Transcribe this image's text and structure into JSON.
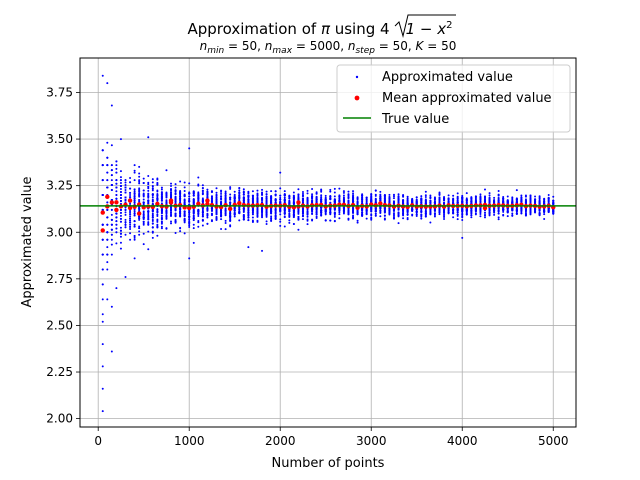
{
  "chart_data": {
    "type": "scatter",
    "title_prefix": "Approximation of ",
    "title_pi": "π",
    "title_using": " using 4",
    "title_expr": "1 − x",
    "title_sup": "2",
    "subtitle": "n_min = 50, n_max = 5000, n_step = 50, K = 50",
    "subtitle_parts": {
      "n1": "n",
      "s1": "min",
      "v1": " = 50, ",
      "n2": "n",
      "s2": "max",
      "v2": " = 5000, ",
      "n3": "n",
      "s3": "step",
      "v3": " = 50, ",
      "k": "K",
      "v4": " = 50"
    },
    "xlabel": "Number of points",
    "ylabel": "Approximated value",
    "xlim": [
      -200,
      5250
    ],
    "ylim": [
      1.955,
      3.935
    ],
    "xticks": [
      0,
      1000,
      2000,
      3000,
      4000,
      5000
    ],
    "xtick_labels": [
      "0",
      "1000",
      "2000",
      "3000",
      "4000",
      "5000"
    ],
    "yticks": [
      2.0,
      2.25,
      2.5,
      2.75,
      3.0,
      3.25,
      3.5,
      3.75
    ],
    "ytick_labels": [
      "2.00",
      "2.25",
      "2.50",
      "2.75",
      "3.00",
      "3.25",
      "3.50",
      "3.75"
    ],
    "grid": true,
    "legend_position": "top-right",
    "n_min": 50,
    "n_max": 5000,
    "n_step": 50,
    "K": 50,
    "true_value": 3.14159,
    "series": [
      {
        "name": "Approximated value",
        "color": "#0000ff",
        "marker": "point"
      },
      {
        "name": "Mean approximated value",
        "color": "#ff0000",
        "marker": "point"
      },
      {
        "name": "True value",
        "color": "#008000",
        "marker": "line"
      }
    ],
    "sample_extremes": [
      {
        "x": 50,
        "y": 3.84
      },
      {
        "x": 50,
        "y": 2.04
      },
      {
        "x": 50,
        "y": 2.16
      },
      {
        "x": 50,
        "y": 2.28
      },
      {
        "x": 50,
        "y": 2.4
      },
      {
        "x": 50,
        "y": 2.52
      },
      {
        "x": 100,
        "y": 3.8
      },
      {
        "x": 100,
        "y": 2.64
      },
      {
        "x": 150,
        "y": 3.68
      },
      {
        "x": 150,
        "y": 2.6
      },
      {
        "x": 150,
        "y": 2.36
      },
      {
        "x": 200,
        "y": 2.7
      },
      {
        "x": 250,
        "y": 3.5
      },
      {
        "x": 300,
        "y": 2.76
      },
      {
        "x": 550,
        "y": 3.51
      },
      {
        "x": 1000,
        "y": 3.45
      },
      {
        "x": 1000,
        "y": 2.86
      },
      {
        "x": 1650,
        "y": 2.92
      },
      {
        "x": 1800,
        "y": 2.9
      },
      {
        "x": 2000,
        "y": 3.32
      },
      {
        "x": 4000,
        "y": 2.97
      }
    ],
    "mean_points_sample": [
      {
        "x": 50,
        "y": 3.01
      },
      {
        "x": 100,
        "y": 3.19
      },
      {
        "x": 200,
        "y": 3.12
      },
      {
        "x": 350,
        "y": 3.17
      },
      {
        "x": 450,
        "y": 3.1
      },
      {
        "x": 800,
        "y": 3.17
      },
      {
        "x": 1200,
        "y": 3.17
      },
      {
        "x": 2200,
        "y": 3.16
      },
      {
        "x": 4250,
        "y": 3.13
      }
    ]
  }
}
